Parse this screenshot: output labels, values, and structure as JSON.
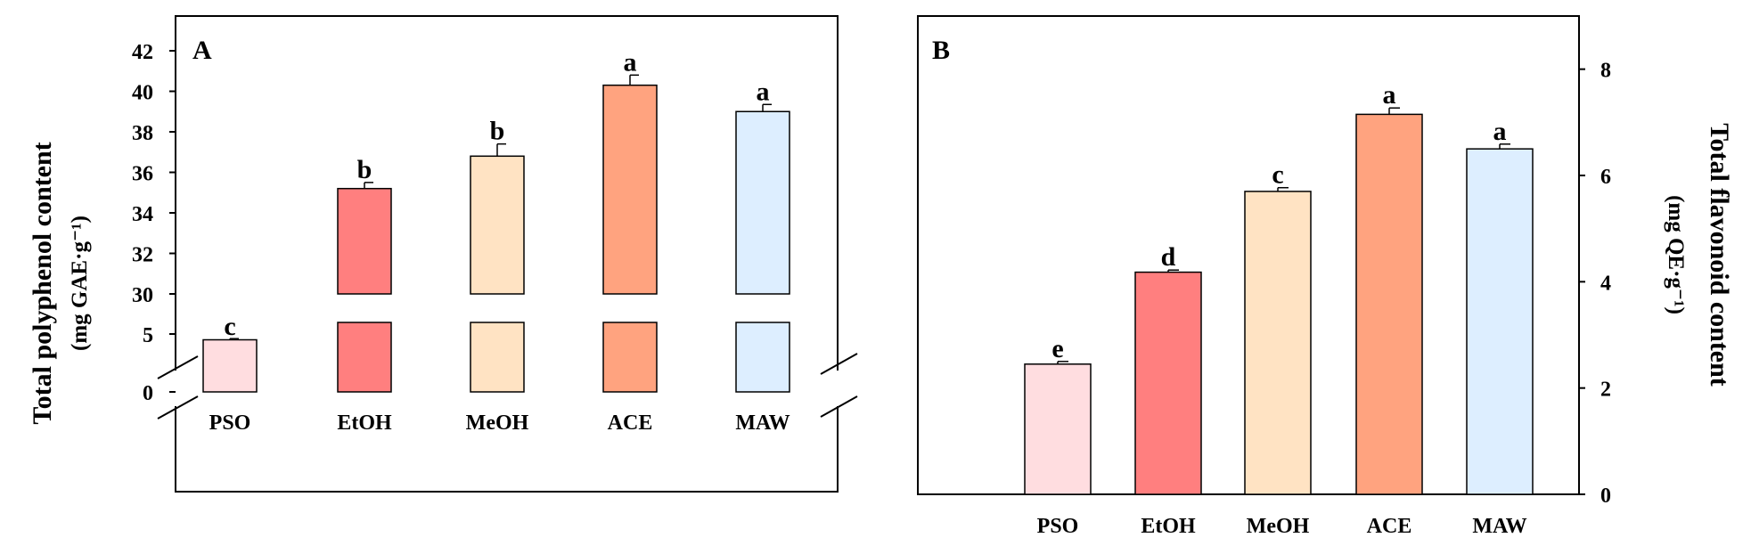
{
  "chart_data": [
    {
      "type": "bar",
      "panel_label": "A",
      "categories": [
        "PSO",
        "EtOH",
        "MeOH",
        "ACE",
        "MAW"
      ],
      "values": [
        4.5,
        35.2,
        36.8,
        40.3,
        39.0
      ],
      "errors": [
        0.1,
        0.3,
        0.6,
        0.5,
        0.35
      ],
      "significance": [
        "c",
        "b",
        "b",
        "a",
        "a"
      ],
      "colors": [
        "#FFDDE0",
        "#FF7F7F",
        "#FFE3C3",
        "#FFA37F",
        "#DDEEFF"
      ],
      "ylabel": "Total polyphenol content",
      "ylabel_unit": "(mg GAE·g⁻¹)",
      "y_axis": "broken",
      "ylim_lower": [
        0,
        6
      ],
      "ylim_upper": [
        30,
        43
      ],
      "yticks_lower": [
        "0",
        "5"
      ],
      "yticks_upper": [
        "30",
        "32",
        "34",
        "36",
        "38",
        "40",
        "42"
      ]
    },
    {
      "type": "bar",
      "panel_label": "B",
      "categories": [
        "PSO",
        "EtOH",
        "MeOH",
        "ACE",
        "MAW"
      ],
      "values": [
        2.45,
        4.18,
        5.7,
        7.15,
        6.5
      ],
      "errors": [
        0.05,
        0.04,
        0.07,
        0.12,
        0.09
      ],
      "significance": [
        "e",
        "d",
        "c",
        "a",
        "a"
      ],
      "colors": [
        "#FFDDE0",
        "#FF7F7F",
        "#FFE3C3",
        "#FFA37F",
        "#DDEEFF"
      ],
      "ylabel": "Total flavonoid content",
      "ylabel_unit": "(mg QE·g⁻¹)",
      "ylim": [
        0,
        9
      ],
      "yticks": [
        "0",
        "2",
        "4",
        "6",
        "8"
      ],
      "y_axis_side": "right"
    }
  ]
}
